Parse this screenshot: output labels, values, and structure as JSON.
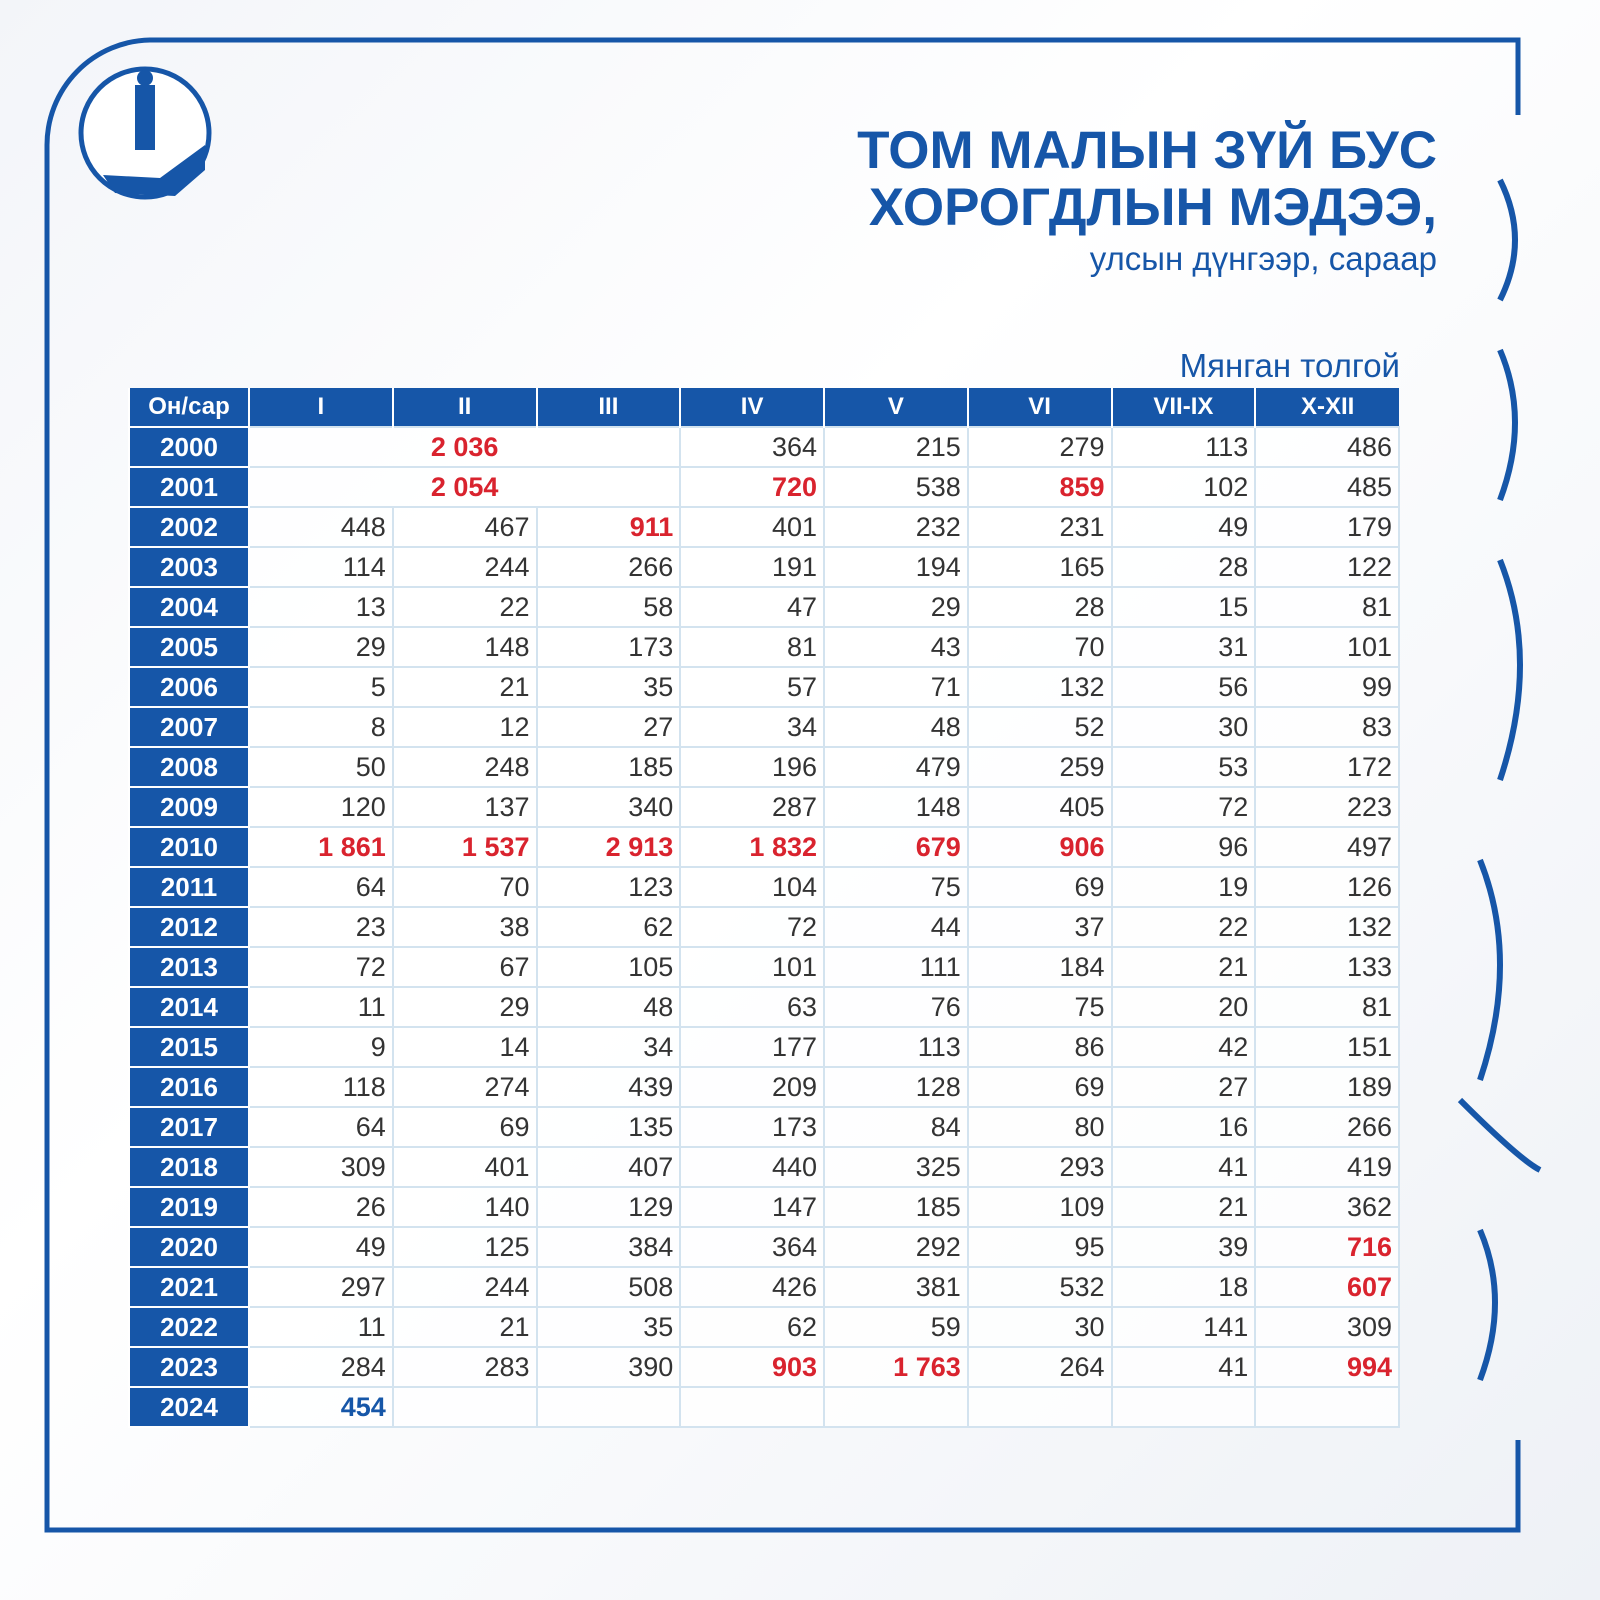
{
  "header": {
    "title_lines": [
      "ТОМ МАЛЫН ЗҮЙ БУС",
      "ХОРОГДЛЫН МЭДЭЭ,"
    ],
    "subtitle": "улсын дүнгээр, сараар",
    "unit": "Мянган толгой"
  },
  "table": {
    "columns": [
      "Он/сар",
      "I",
      "II",
      "III",
      "IV",
      "V",
      "VI",
      "VII-IX",
      "X-XII"
    ],
    "rows": [
      {
        "year": "2000",
        "cells": [
          {
            "text": "2 036",
            "span": 3,
            "color": "#d9232e"
          },
          "364",
          "215",
          "279",
          "113",
          "486"
        ]
      },
      {
        "year": "2001",
        "cells": [
          {
            "text": "2 054",
            "span": 3,
            "color": "#d9232e"
          },
          {
            "text": "720",
            "color": "#d9232e"
          },
          "538",
          {
            "text": "859",
            "color": "#d9232e"
          },
          "102",
          "485"
        ]
      },
      {
        "year": "2002",
        "cells": [
          "448",
          "467",
          {
            "text": "911",
            "color": "#d9232e"
          },
          "401",
          "232",
          "231",
          "49",
          "179"
        ]
      },
      {
        "year": "2003",
        "cells": [
          "114",
          "244",
          "266",
          "191",
          "194",
          "165",
          "28",
          "122"
        ]
      },
      {
        "year": "2004",
        "cells": [
          "13",
          "22",
          "58",
          "47",
          "29",
          "28",
          "15",
          "81"
        ]
      },
      {
        "year": "2005",
        "cells": [
          "29",
          "148",
          "173",
          "81",
          "43",
          "70",
          "31",
          "101"
        ]
      },
      {
        "year": "2006",
        "cells": [
          "5",
          "21",
          "35",
          "57",
          "71",
          "132",
          "56",
          "99"
        ]
      },
      {
        "year": "2007",
        "cells": [
          "8",
          "12",
          "27",
          "34",
          "48",
          "52",
          "30",
          "83"
        ]
      },
      {
        "year": "2008",
        "cells": [
          "50",
          "248",
          "185",
          "196",
          "479",
          "259",
          "53",
          "172"
        ]
      },
      {
        "year": "2009",
        "cells": [
          "120",
          "137",
          "340",
          "287",
          "148",
          "405",
          "72",
          "223"
        ]
      },
      {
        "year": "2010",
        "cells": [
          {
            "text": "1 861",
            "color": "#d9232e"
          },
          {
            "text": "1 537",
            "color": "#d9232e"
          },
          {
            "text": "2 913",
            "color": "#d9232e"
          },
          {
            "text": "1 832",
            "color": "#d9232e"
          },
          {
            "text": "679",
            "color": "#d9232e"
          },
          {
            "text": "906",
            "color": "#d9232e"
          },
          "96",
          "497"
        ]
      },
      {
        "year": "2011",
        "cells": [
          "64",
          "70",
          "123",
          "104",
          "75",
          "69",
          "19",
          "126"
        ]
      },
      {
        "year": "2012",
        "cells": [
          "23",
          "38",
          "62",
          "72",
          "44",
          "37",
          "22",
          "132"
        ]
      },
      {
        "year": "2013",
        "cells": [
          "72",
          "67",
          "105",
          "101",
          "111",
          "184",
          "21",
          "133"
        ]
      },
      {
        "year": "2014",
        "cells": [
          "11",
          "29",
          "48",
          "63",
          "76",
          "75",
          "20",
          "81"
        ]
      },
      {
        "year": "2015",
        "cells": [
          "9",
          "14",
          "34",
          "177",
          "113",
          "86",
          "42",
          "151"
        ]
      },
      {
        "year": "2016",
        "cells": [
          "118",
          "274",
          "439",
          "209",
          "128",
          "69",
          "27",
          "189"
        ]
      },
      {
        "year": "2017",
        "cells": [
          "64",
          "69",
          "135",
          "173",
          "84",
          "80",
          "16",
          "266"
        ]
      },
      {
        "year": "2018",
        "cells": [
          "309",
          "401",
          "407",
          "440",
          "325",
          "293",
          "41",
          "419"
        ]
      },
      {
        "year": "2019",
        "cells": [
          "26",
          "140",
          "129",
          "147",
          "185",
          "109",
          "21",
          "362"
        ]
      },
      {
        "year": "2020",
        "cells": [
          "49",
          "125",
          "384",
          "364",
          "292",
          "95",
          "39",
          {
            "text": "716",
            "color": "#d9232e"
          }
        ]
      },
      {
        "year": "2021",
        "cells": [
          "297",
          "244",
          "508",
          "426",
          "381",
          "532",
          "18",
          {
            "text": "607",
            "color": "#d9232e"
          }
        ]
      },
      {
        "year": "2022",
        "cells": [
          "11",
          "21",
          "35",
          "62",
          "59",
          "30",
          "141",
          "309"
        ]
      },
      {
        "year": "2023",
        "cells": [
          "284",
          "283",
          "390",
          {
            "text": "903",
            "color": "#d9232e"
          },
          {
            "text": "1 763",
            "color": "#d9232e"
          },
          "264",
          "41",
          {
            "text": "994",
            "color": "#d9232e"
          }
        ]
      },
      {
        "year": "2024",
        "cells": [
          {
            "text": "454",
            "color": "#1656a8"
          }
        ]
      }
    ]
  }
}
